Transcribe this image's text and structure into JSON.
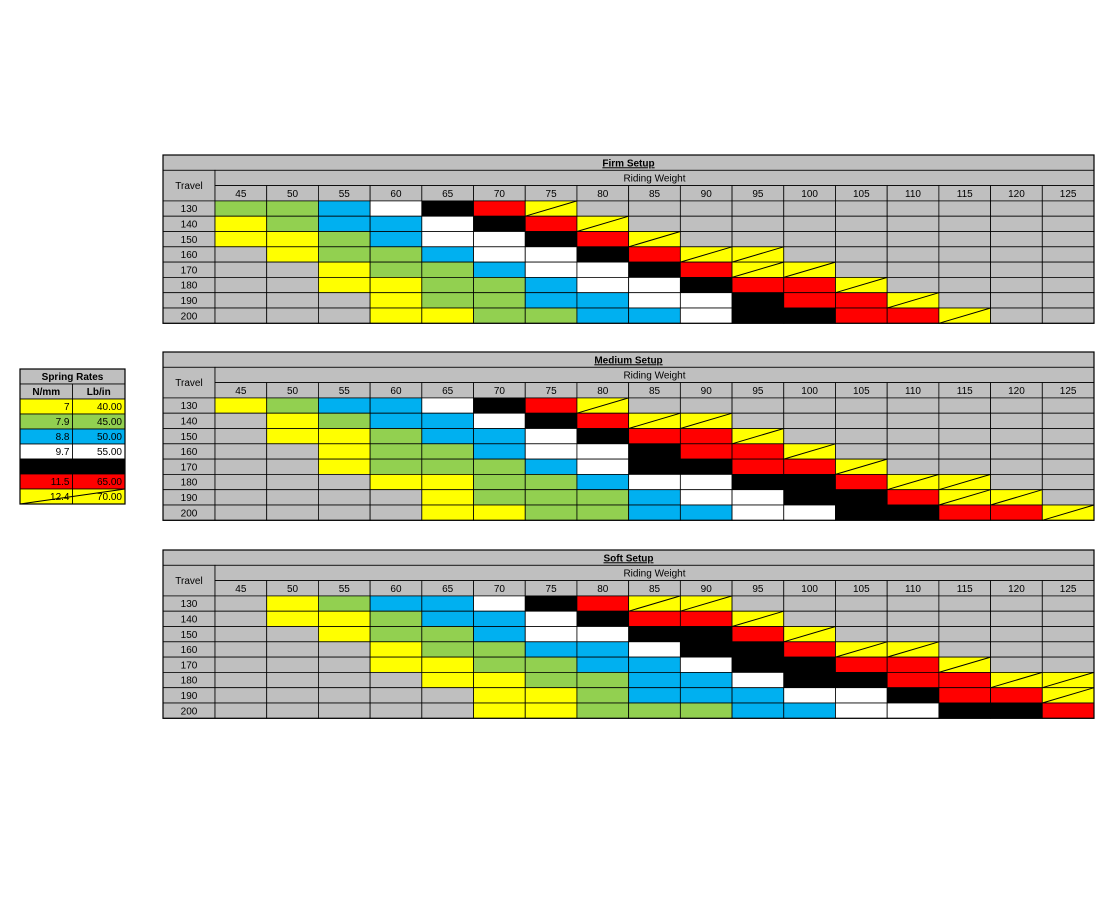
{
  "legend": {
    "title": "Spring Rates",
    "headers": [
      "N/mm",
      "Lb/in"
    ],
    "rows": [
      {
        "nmm": 7,
        "lbin": "40.00",
        "color": "#ffff00",
        "text_color": "#000000"
      },
      {
        "nmm": 7.9,
        "lbin": "45.00",
        "color": "#92d050",
        "text_color": "#000000"
      },
      {
        "nmm": 8.8,
        "lbin": "50.00",
        "color": "#00b0f0",
        "text_color": "#000000"
      },
      {
        "nmm": 9.7,
        "lbin": "55.00",
        "color": "#ffffff",
        "text_color": "#000000"
      },
      {
        "nmm": 10.6,
        "lbin": "60.00",
        "color": "#000000",
        "text_color": "#ffffff"
      },
      {
        "nmm": 11.5,
        "lbin": "65.00",
        "color": "#ff0000",
        "text_color": "#c00000"
      },
      {
        "nmm": 12.4,
        "lbin": "70.00",
        "color": "#ffff00",
        "text_color": "#000000",
        "diagonal": true
      }
    ]
  },
  "travel_label": "Travel",
  "weight_label": "Riding Weight",
  "weights": [
    45,
    50,
    55,
    60,
    65,
    70,
    75,
    80,
    85,
    90,
    95,
    100,
    105,
    110,
    115,
    120,
    125
  ],
  "travels": [
    130,
    140,
    150,
    160,
    170,
    180,
    190,
    200
  ],
  "tables": [
    {
      "title": "Firm Setup",
      "grid": [
        [
          7.9,
          7.9,
          8.8,
          9.7,
          10.6,
          11.5,
          12.4,
          null,
          null,
          null,
          null,
          null,
          null,
          null,
          null,
          null,
          null
        ],
        [
          7,
          7.9,
          8.8,
          8.8,
          9.7,
          10.6,
          11.5,
          12.4,
          null,
          null,
          null,
          null,
          null,
          null,
          null,
          null,
          null
        ],
        [
          7,
          7,
          7.9,
          8.8,
          9.7,
          9.7,
          10.6,
          11.5,
          12.4,
          null,
          null,
          null,
          null,
          null,
          null,
          null,
          null
        ],
        [
          null,
          7,
          7.9,
          7.9,
          8.8,
          9.7,
          9.7,
          10.6,
          11.5,
          12.4,
          12.4,
          null,
          null,
          null,
          null,
          null,
          null
        ],
        [
          null,
          null,
          7,
          7.9,
          7.9,
          8.8,
          9.7,
          9.7,
          10.6,
          11.5,
          12.4,
          12.4,
          null,
          null,
          null,
          null,
          null
        ],
        [
          null,
          null,
          7,
          7,
          7.9,
          7.9,
          8.8,
          9.7,
          9.7,
          10.6,
          11.5,
          11.5,
          12.4,
          null,
          null,
          null,
          null
        ],
        [
          null,
          null,
          null,
          7,
          7.9,
          7.9,
          8.8,
          8.8,
          9.7,
          9.7,
          10.6,
          11.5,
          11.5,
          12.4,
          null,
          null,
          null
        ],
        [
          null,
          null,
          null,
          7,
          7,
          7.9,
          7.9,
          8.8,
          8.8,
          9.7,
          10.6,
          10.6,
          11.5,
          11.5,
          12.4,
          null,
          null
        ]
      ]
    },
    {
      "title": "Medium Setup",
      "grid": [
        [
          7,
          7.9,
          8.8,
          8.8,
          9.7,
          10.6,
          11.5,
          12.4,
          null,
          null,
          null,
          null,
          null,
          null,
          null,
          null,
          null
        ],
        [
          null,
          7,
          7.9,
          8.8,
          8.8,
          9.7,
          10.6,
          11.5,
          12.4,
          12.4,
          null,
          null,
          null,
          null,
          null,
          null,
          null
        ],
        [
          null,
          7,
          7,
          7.9,
          8.8,
          8.8,
          9.7,
          10.6,
          11.5,
          11.5,
          12.4,
          null,
          null,
          null,
          null,
          null,
          null
        ],
        [
          null,
          null,
          7,
          7.9,
          7.9,
          8.8,
          9.7,
          9.7,
          10.6,
          11.5,
          11.5,
          12.4,
          null,
          null,
          null,
          null,
          null
        ],
        [
          null,
          null,
          7,
          7.9,
          7.9,
          7.9,
          8.8,
          9.7,
          10.6,
          10.6,
          11.5,
          11.5,
          12.4,
          null,
          null,
          null,
          null
        ],
        [
          null,
          null,
          null,
          7,
          7,
          7.9,
          7.9,
          8.8,
          9.7,
          9.7,
          10.6,
          10.6,
          11.5,
          12.4,
          12.4,
          null,
          null
        ],
        [
          null,
          null,
          null,
          null,
          7,
          7.9,
          7.9,
          7.9,
          8.8,
          9.7,
          9.7,
          10.6,
          10.6,
          11.5,
          12.4,
          12.4,
          null
        ],
        [
          null,
          null,
          null,
          null,
          7,
          7,
          7.9,
          7.9,
          8.8,
          8.8,
          9.7,
          9.7,
          10.6,
          10.6,
          11.5,
          11.5,
          12.4
        ]
      ]
    },
    {
      "title": "Soft Setup",
      "grid": [
        [
          null,
          7,
          7.9,
          8.8,
          8.8,
          9.7,
          10.6,
          11.5,
          12.4,
          12.4,
          null,
          null,
          null,
          null,
          null,
          null,
          null
        ],
        [
          null,
          7,
          7,
          7.9,
          8.8,
          8.8,
          9.7,
          10.6,
          11.5,
          11.5,
          12.4,
          null,
          null,
          null,
          null,
          null,
          null
        ],
        [
          null,
          null,
          7,
          7.9,
          7.9,
          8.8,
          9.7,
          9.7,
          10.6,
          10.6,
          11.5,
          12.4,
          null,
          null,
          null,
          null,
          null
        ],
        [
          null,
          null,
          null,
          7,
          7.9,
          7.9,
          8.8,
          8.8,
          9.7,
          10.6,
          10.6,
          11.5,
          12.4,
          12.4,
          null,
          null,
          null
        ],
        [
          null,
          null,
          null,
          7,
          7,
          7.9,
          7.9,
          8.8,
          8.8,
          9.7,
          10.6,
          10.6,
          11.5,
          11.5,
          12.4,
          null,
          null
        ],
        [
          null,
          null,
          null,
          null,
          7,
          7,
          7.9,
          7.9,
          8.8,
          8.8,
          9.7,
          10.6,
          10.6,
          11.5,
          11.5,
          12.4,
          12.4
        ],
        [
          null,
          null,
          null,
          null,
          null,
          7,
          7,
          7.9,
          8.8,
          8.8,
          8.8,
          9.7,
          9.7,
          10.6,
          11.5,
          11.5,
          12.4
        ],
        [
          null,
          null,
          null,
          null,
          null,
          7,
          7,
          7.9,
          7.9,
          7.9,
          8.8,
          8.8,
          9.7,
          9.7,
          10.6,
          10.6,
          11.5
        ]
      ]
    }
  ]
}
